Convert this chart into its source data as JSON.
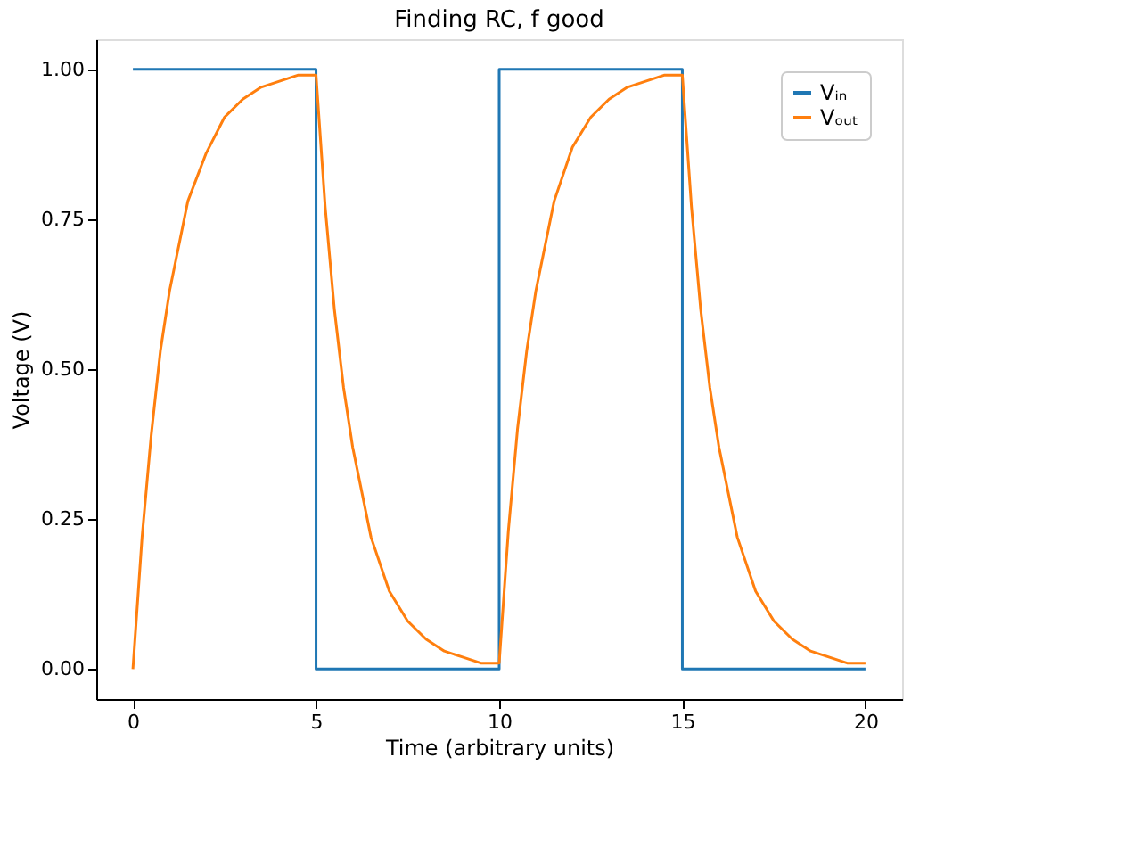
{
  "chart_data": {
    "type": "line",
    "title": "Finding RC, f good",
    "xlabel": "Time (arbitrary units)",
    "ylabel": "Voltage (V)",
    "xlim": [
      -1,
      21
    ],
    "xticks": [
      0,
      5,
      10,
      15,
      20
    ],
    "ylim": [
      -0.05,
      1.05
    ],
    "yticks": [
      {
        "value": 0,
        "label": "0.00"
      },
      {
        "value": 0.25,
        "label": "0.25"
      },
      {
        "value": 0.5,
        "label": "0.50"
      },
      {
        "value": 0.75,
        "label": "0.75"
      },
      {
        "value": 1,
        "label": "1.00"
      }
    ],
    "grid": false,
    "legend": "top right",
    "line_style": "solid",
    "series": [
      {
        "name": "Vᵢₙ",
        "color": "#1f77b4",
        "x": [
          0,
          5,
          5,
          10,
          10,
          15,
          15,
          20
        ],
        "values": [
          1,
          1,
          0,
          0,
          1,
          1,
          0,
          0
        ]
      },
      {
        "name": "Vₒᵤₜ",
        "color": "#ff7f0e",
        "x": [
          0,
          0.25,
          0.5,
          0.75,
          1,
          1.5,
          2,
          2.5,
          3,
          3.5,
          4,
          4.5,
          5,
          5.25,
          5.5,
          5.75,
          6,
          6.5,
          7,
          7.5,
          8,
          8.5,
          9,
          9.5,
          10,
          10.25,
          10.5,
          10.75,
          11,
          11.5,
          12,
          12.5,
          13,
          13.5,
          14,
          14.5,
          15,
          15.25,
          15.5,
          15.75,
          16,
          16.5,
          17,
          17.5,
          18,
          18.5,
          19,
          19.5,
          20
        ],
        "values": [
          0,
          0.22,
          0.39,
          0.53,
          0.63,
          0.78,
          0.86,
          0.92,
          0.95,
          0.97,
          0.98,
          0.99,
          0.99,
          0.77,
          0.6,
          0.47,
          0.37,
          0.22,
          0.13,
          0.08,
          0.05,
          0.03,
          0.02,
          0.01,
          0.01,
          0.23,
          0.4,
          0.53,
          0.63,
          0.78,
          0.87,
          0.92,
          0.95,
          0.97,
          0.98,
          0.99,
          0.99,
          0.77,
          0.6,
          0.47,
          0.37,
          0.22,
          0.13,
          0.08,
          0.05,
          0.03,
          0.02,
          0.01,
          0.01
        ]
      }
    ]
  }
}
